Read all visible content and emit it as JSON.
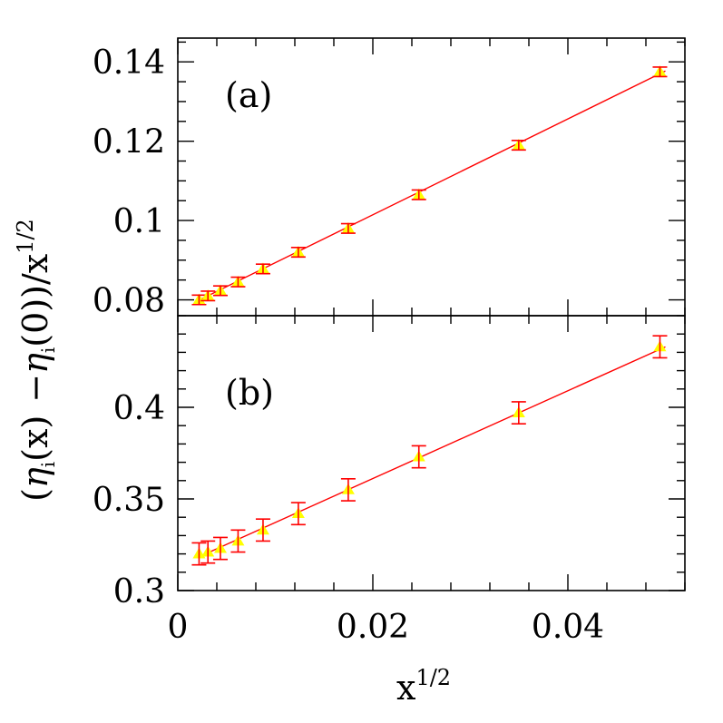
{
  "chart_data": [
    {
      "type": "scatter",
      "panel_label": "(a)",
      "xlim": [
        0,
        0.052
      ],
      "ylim": [
        0.076,
        0.146
      ],
      "yticks_major": [
        0.08,
        0.1,
        0.12,
        0.14
      ],
      "ytick_labels": [
        "0.08",
        "0.1",
        "0.12",
        "0.14"
      ],
      "series": [
        {
          "marker": "triangle",
          "x": [
            0.00218,
            0.00309,
            0.00437,
            0.00618,
            0.00874,
            0.01236,
            0.01748,
            0.02472,
            0.03496,
            0.04944
          ],
          "y": [
            0.08,
            0.081,
            0.0823,
            0.0845,
            0.0878,
            0.092,
            0.098,
            0.1065,
            0.119,
            0.1375
          ],
          "err": [
            0.0012,
            0.0012,
            0.0012,
            0.0012,
            0.0012,
            0.0012,
            0.0012,
            0.0012,
            0.0012,
            0.0012
          ]
        }
      ],
      "fit_line": {
        "x": [
          0.002,
          0.05
        ],
        "y": [
          0.0797,
          0.1377
        ]
      }
    },
    {
      "type": "scatter",
      "panel_label": "(b)",
      "xlim": [
        0,
        0.052
      ],
      "ylim": [
        0.3,
        0.45
      ],
      "yticks_major": [
        0.3,
        0.35,
        0.4
      ],
      "ytick_labels": [
        "0.3",
        "0.35",
        "0.4"
      ],
      "series": [
        {
          "marker": "triangle",
          "x": [
            0.00218,
            0.00309,
            0.00437,
            0.00618,
            0.00874,
            0.01236,
            0.01748,
            0.02472,
            0.03496,
            0.04944
          ],
          "y": [
            0.32,
            0.321,
            0.323,
            0.327,
            0.333,
            0.342,
            0.355,
            0.373,
            0.397,
            0.433
          ],
          "err": [
            0.006,
            0.006,
            0.006,
            0.006,
            0.006,
            0.006,
            0.006,
            0.006,
            0.006,
            0.006
          ]
        }
      ],
      "fit_line": {
        "x": [
          0.002,
          0.05
        ],
        "y": [
          0.318,
          0.433
        ]
      }
    }
  ],
  "x_axis": {
    "ticks_major": [
      0,
      0.02,
      0.04
    ],
    "tick_labels": [
      "0",
      "0.02",
      "0.04"
    ],
    "title_base": "x",
    "title_sup": "1/2"
  },
  "y_axis": {
    "title_open": "(",
    "title_eta": "η",
    "title_sub": "i",
    "title_arg_x": "(x)",
    "title_minus": "−",
    "title_arg_0": "(0))",
    "title_slash": "/x",
    "title_sup": "1/2"
  },
  "colors": {
    "fit_line": "#ff0000",
    "errorbar": "#ff0000",
    "marker": "#ffff00",
    "axes": "#000000",
    "background": "#ffffff"
  }
}
